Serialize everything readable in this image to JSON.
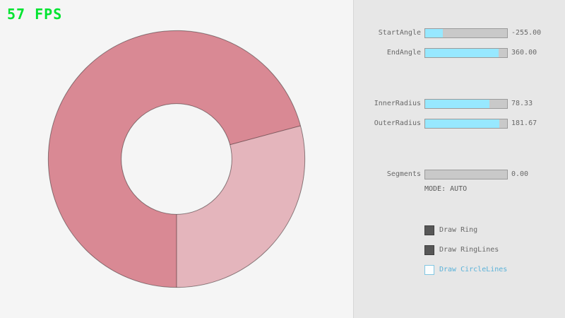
{
  "fps": "57 FPS",
  "panel": {
    "sliders": [
      {
        "label": "StartAngle",
        "value": "-255.00",
        "fill_pct": 21.7
      },
      {
        "label": "EndAngle",
        "value": "360.00",
        "fill_pct": 90.0
      },
      {
        "label": "InnerRadius",
        "value": "78.33",
        "fill_pct": 78.3
      },
      {
        "label": "OuterRadius",
        "value": "181.67",
        "fill_pct": 90.8
      },
      {
        "label": "Segments",
        "value": "0.00",
        "fill_pct": 0
      }
    ],
    "mode_text": "MODE: AUTO",
    "checkboxes": [
      {
        "label": "Draw Ring",
        "checked": true
      },
      {
        "label": "Draw RingLines",
        "checked": true
      },
      {
        "label": "Draw CircleLines",
        "checked": false
      }
    ]
  },
  "ring": {
    "start_angle": -255.0,
    "end_angle": 360.0,
    "inner_radius": 78.33,
    "outer_radius": 181.67,
    "segments": 0.0,
    "mode": "AUTO"
  },
  "colors": {
    "fps-green": "#00e430",
    "ring-dark": "#d98994",
    "ring-light": "#e4b5bc",
    "ring-line": "rgba(0,0,0,0.42)",
    "slider-fill": "#97e8ff",
    "slider-track": "#c9c9c9",
    "slider-border": "#9b9b9b",
    "gui-text": "#686868",
    "gui-blue": "#5bb2d9",
    "cb-blue-border": "#82c7e2",
    "cb-dark": "#575757",
    "panel-bg": "#e7e7e7",
    "stage-bg": "#f5f5f5"
  }
}
